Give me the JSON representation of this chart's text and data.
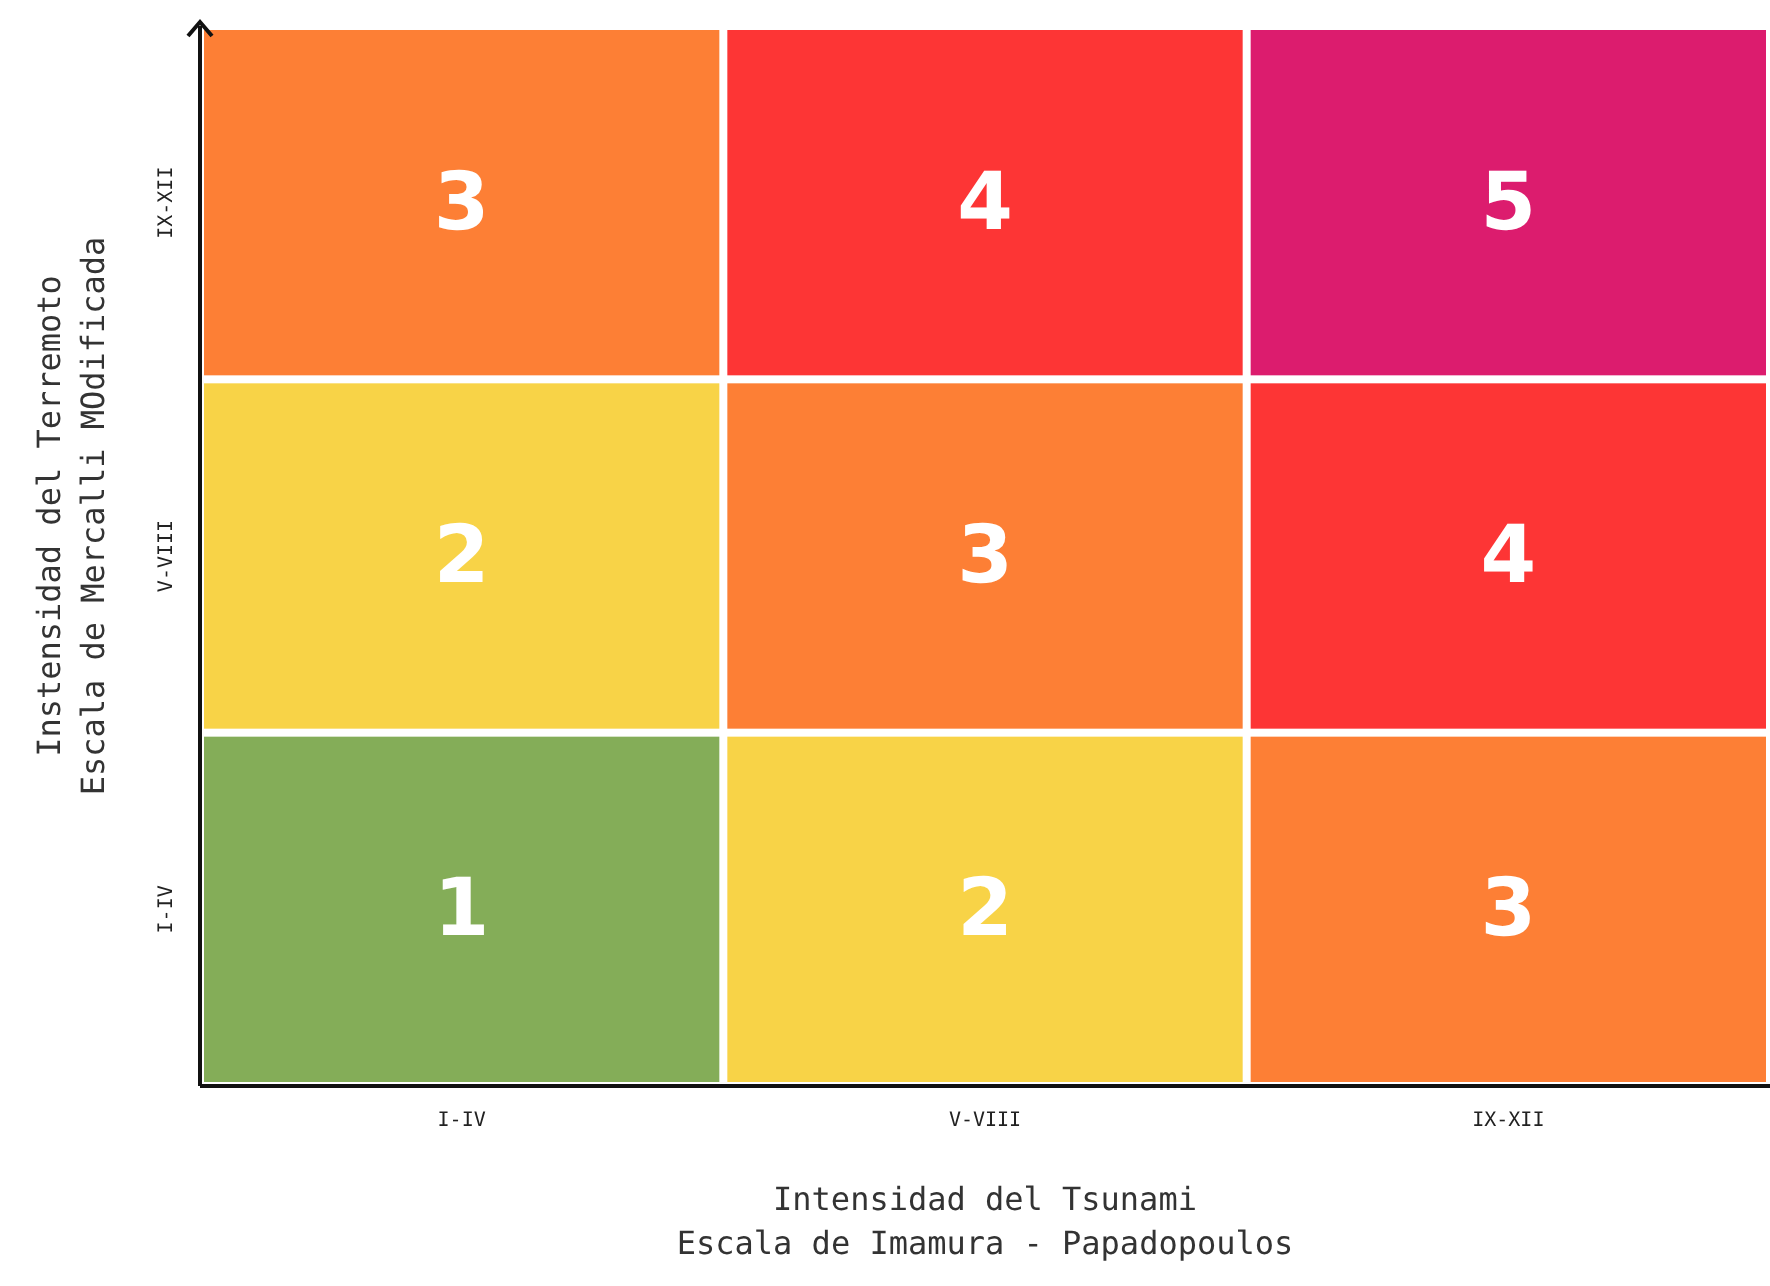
{
  "chart_data": {
    "type": "heatmap",
    "categories": [
      "I-IV",
      "V-VIII",
      "IX-XII"
    ],
    "y_categories": [
      "IX-XII",
      "V-VIII",
      "I-IV"
    ],
    "cells": [
      [
        3,
        4,
        5
      ],
      [
        2,
        3,
        4
      ],
      [
        1,
        2,
        3
      ]
    ],
    "colors": [
      "#fd7f35",
      "#fd3535",
      "#dc1c6e",
      "#f8d347",
      "#fd7f35",
      "#fd3535",
      "#84ad58",
      "#f8d347",
      "#fd7f35"
    ],
    "data_labels": true,
    "xlabel": "Intensidad del Tsunami\nEscala de Imamura - Papadopoulos",
    "ylabel": "Instensidad del Terremoto\nEscala de Mercalli MOdificada"
  }
}
